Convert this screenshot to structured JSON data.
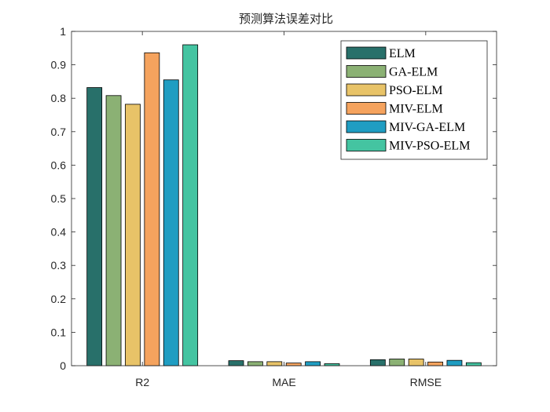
{
  "chart_data": {
    "type": "bar",
    "title": "预测算法误差对比",
    "xlabel": "",
    "ylabel": "",
    "categories": [
      "R2",
      "MAE",
      "RMSE"
    ],
    "ylim": [
      0,
      1
    ],
    "yticks": [
      "0",
      "0.1",
      "0.2",
      "0.3",
      "0.4",
      "0.5",
      "0.6",
      "0.7",
      "0.8",
      "0.9",
      "1"
    ],
    "legend_position": "top-right",
    "grid": false,
    "series": [
      {
        "name": "ELM",
        "color": "#28706A",
        "values": [
          0.832,
          0.015,
          0.018
        ]
      },
      {
        "name": "GA-ELM",
        "color": "#8BB174",
        "values": [
          0.808,
          0.012,
          0.02
        ]
      },
      {
        "name": "PSO-ELM",
        "color": "#E8C368",
        "values": [
          0.782,
          0.012,
          0.02
        ]
      },
      {
        "name": "MIV-ELM",
        "color": "#F5A35E",
        "values": [
          0.936,
          0.008,
          0.011
        ]
      },
      {
        "name": "MIV-GA-ELM",
        "color": "#1F9DC2",
        "values": [
          0.855,
          0.012,
          0.016
        ]
      },
      {
        "name": "MIV-PSO-ELM",
        "color": "#44C4A1",
        "values": [
          0.96,
          0.006,
          0.009
        ]
      }
    ]
  }
}
